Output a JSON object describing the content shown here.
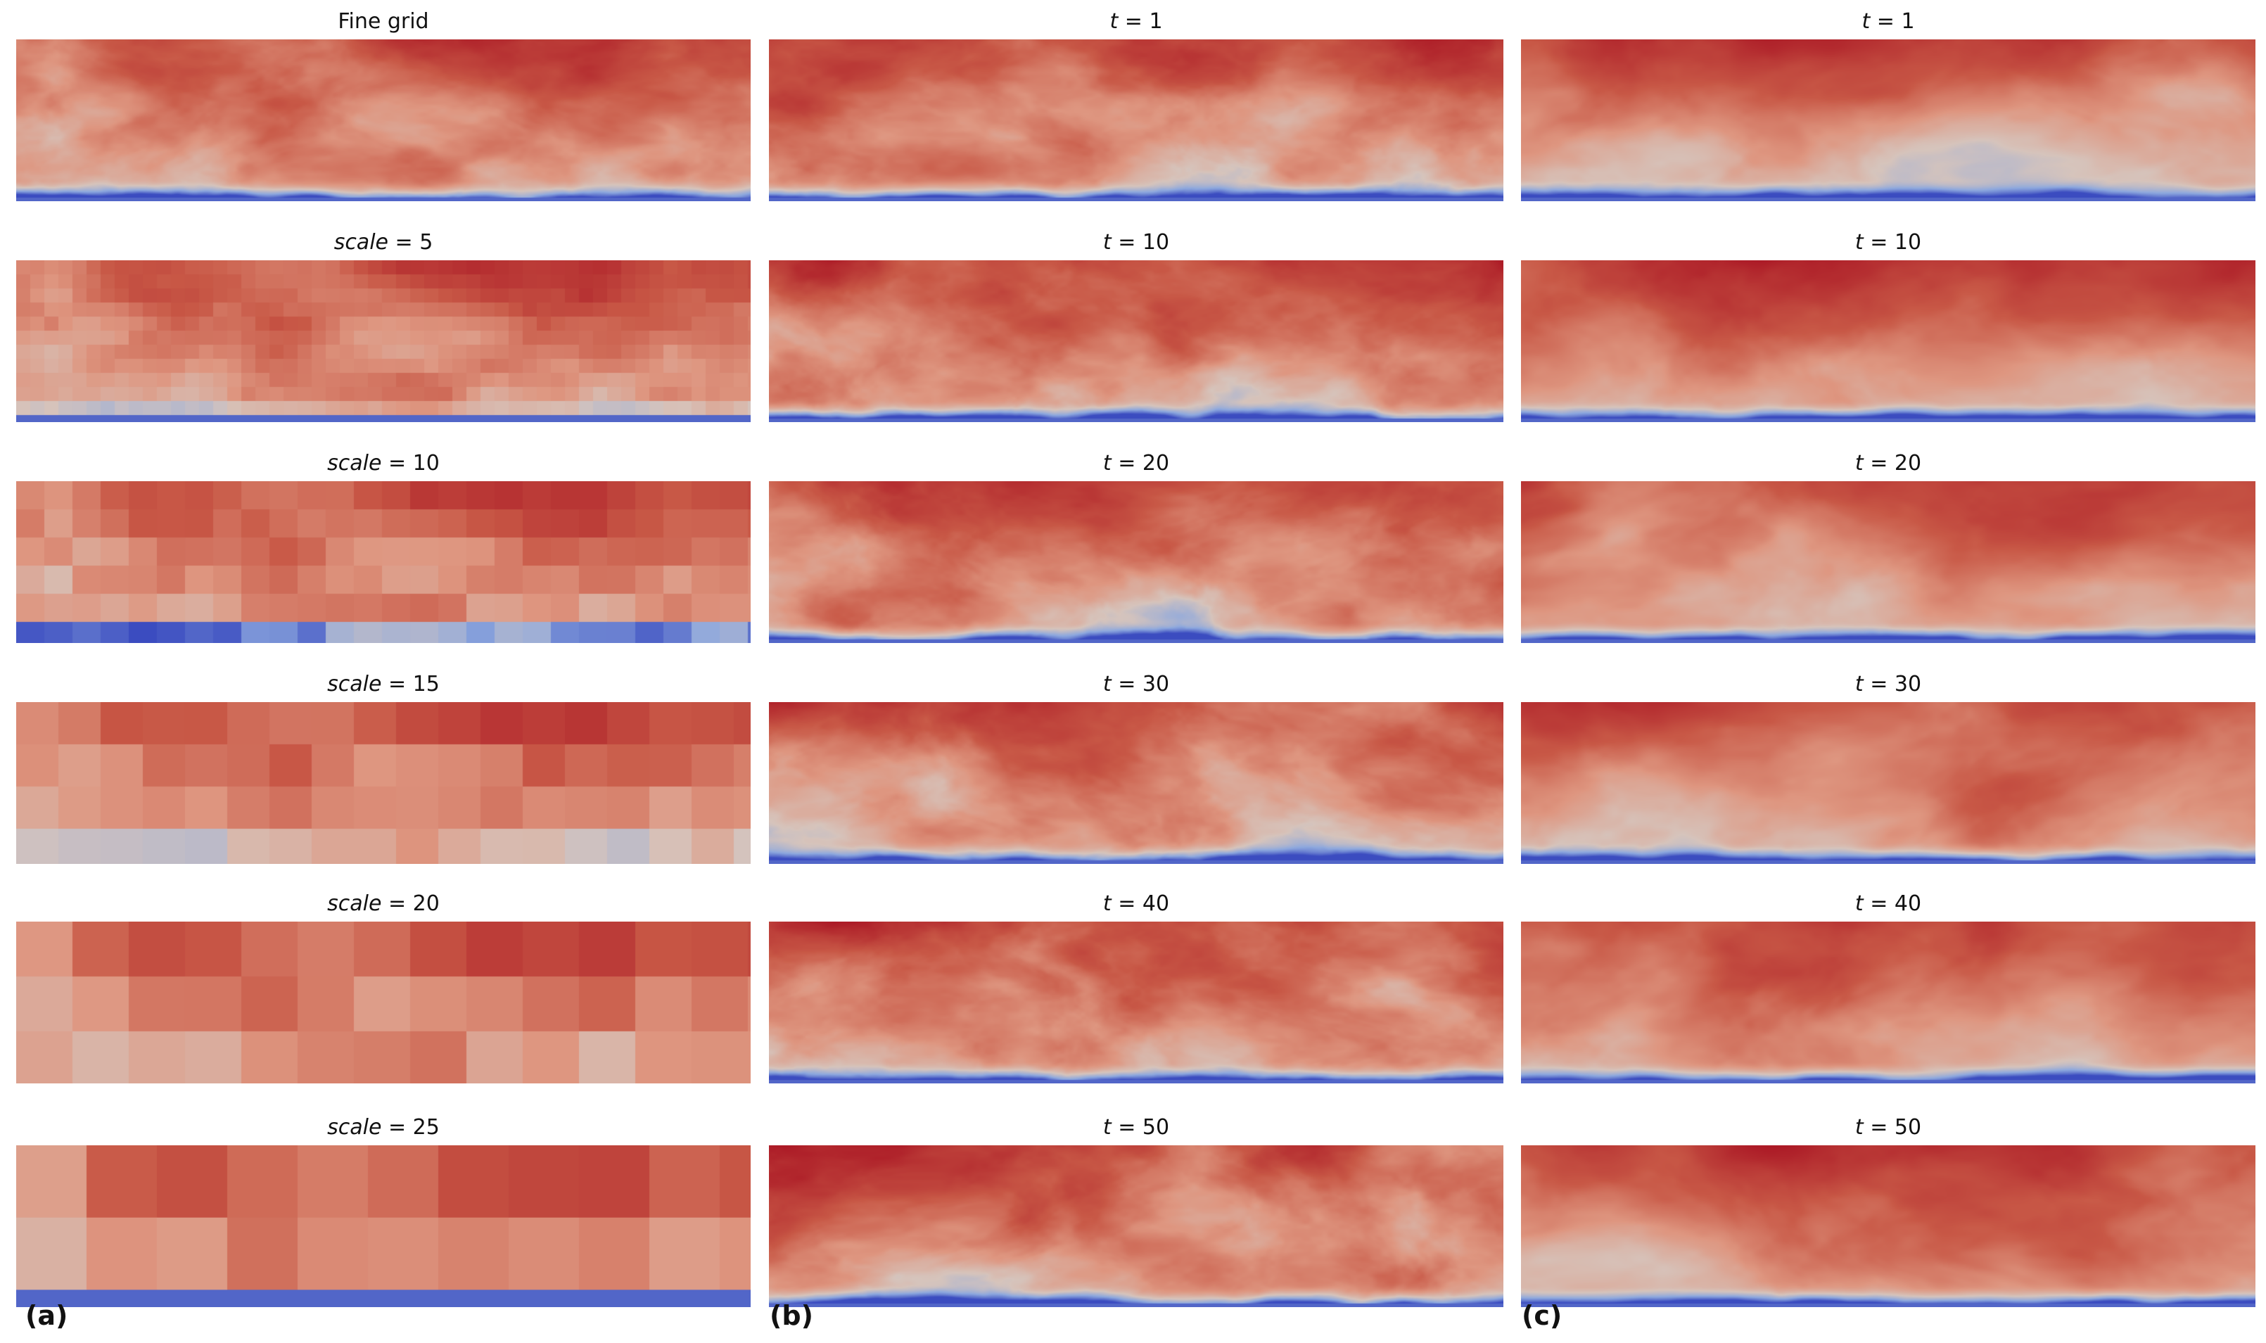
{
  "columns": [
    {
      "label": "(a)",
      "panels": [
        {
          "title_text": "Fine grid",
          "title_var": "",
          "title_val": "",
          "pixel": 0
        },
        {
          "title_text": "",
          "title_var": "scale",
          "title_val": " = 5",
          "pixel": 5
        },
        {
          "title_text": "",
          "title_var": "scale",
          "title_val": " = 10",
          "pixel": 10
        },
        {
          "title_text": "",
          "title_var": "scale",
          "title_val": " = 15",
          "pixel": 15
        },
        {
          "title_text": "",
          "title_var": "scale",
          "title_val": " = 20",
          "pixel": 20
        },
        {
          "title_text": "",
          "title_var": "scale",
          "title_val": " = 25",
          "pixel": 25
        }
      ]
    },
    {
      "label": "(b)",
      "panels": [
        {
          "title_text": "",
          "title_var": "t",
          "title_val": " = 1"
        },
        {
          "title_text": "",
          "title_var": "t",
          "title_val": " = 10"
        },
        {
          "title_text": "",
          "title_var": "t",
          "title_val": " = 20"
        },
        {
          "title_text": "",
          "title_var": "t",
          "title_val": " = 30"
        },
        {
          "title_text": "",
          "title_var": "t",
          "title_val": " = 40"
        },
        {
          "title_text": "",
          "title_var": "t",
          "title_val": " = 50"
        }
      ]
    },
    {
      "label": "(c)",
      "panels": [
        {
          "title_text": "",
          "title_var": "t",
          "title_val": " = 1"
        },
        {
          "title_text": "",
          "title_var": "t",
          "title_val": " = 10"
        },
        {
          "title_text": "",
          "title_var": "t",
          "title_val": " = 20"
        },
        {
          "title_text": "",
          "title_var": "t",
          "title_val": " = 30"
        },
        {
          "title_text": "",
          "title_var": "t",
          "title_val": " = 40"
        },
        {
          "title_text": "",
          "title_var": "t",
          "title_val": " = 50"
        }
      ]
    }
  ],
  "colors": {
    "dark_red": "#b2182b",
    "red": "#c0392b",
    "light_red": "#d9765e",
    "pale": "#dfb2a4",
    "blue": "#3a5fc0",
    "light_blue": "#8fa9d8"
  }
}
